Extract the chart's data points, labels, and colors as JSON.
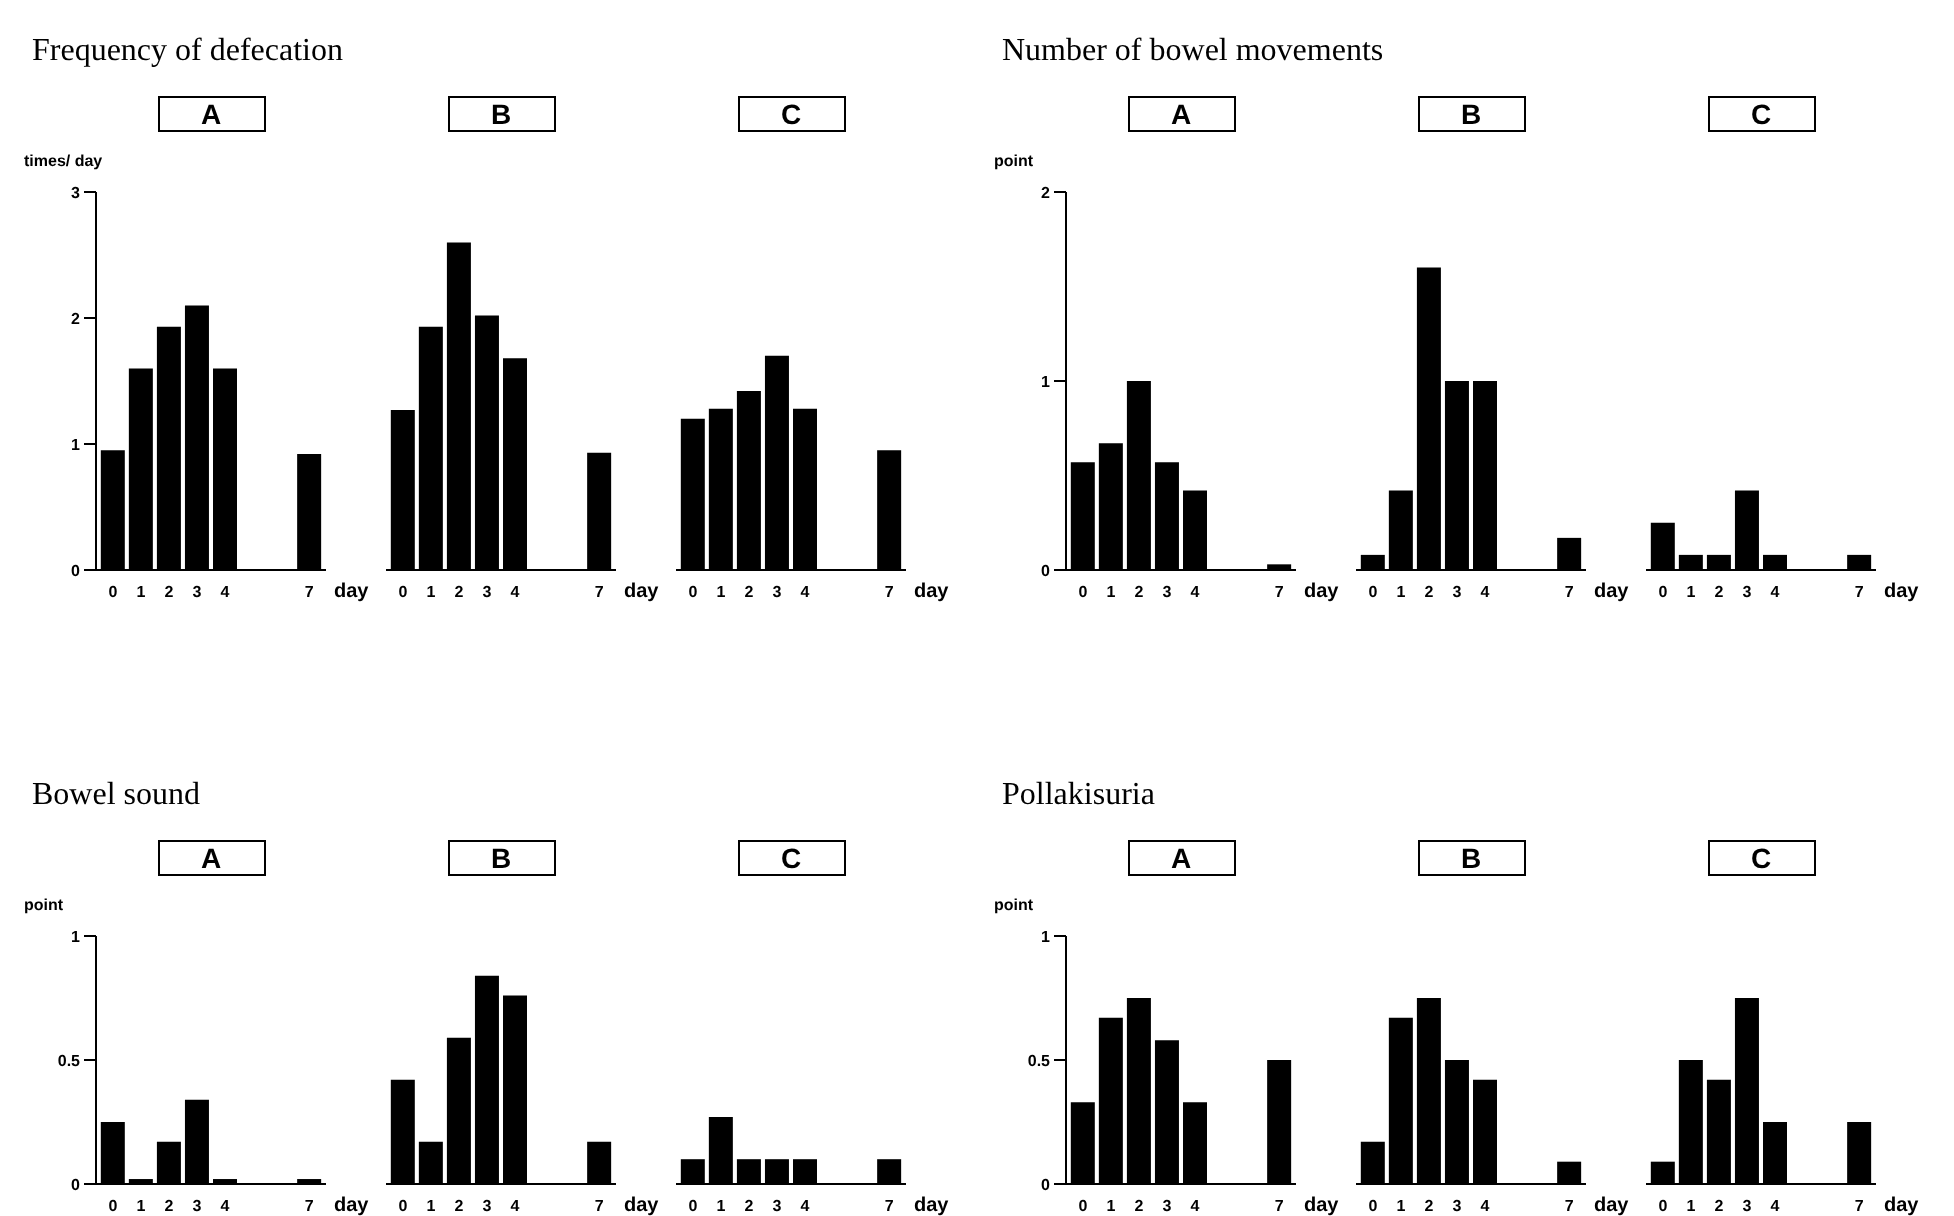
{
  "chart_data": [
    {
      "type": "bar",
      "title": "Frequency of defecation",
      "subtitle": "A",
      "ylabel": "times/ day",
      "xlabel": "day",
      "x": [
        0,
        1,
        2,
        3,
        4,
        7
      ],
      "values": [
        0.95,
        1.6,
        1.93,
        2.1,
        1.6,
        0.92
      ],
      "color": "#000000",
      "xlim": [
        -0.6,
        7.6
      ],
      "xticks": [
        0,
        1,
        2,
        3,
        4,
        7
      ],
      "ylim": [
        0,
        3
      ],
      "yticks": [
        0,
        1,
        2,
        3
      ]
    },
    {
      "type": "bar",
      "subtitle": "B",
      "xlabel": "day",
      "x": [
        0,
        1,
        2,
        3,
        4,
        7
      ],
      "values": [
        1.27,
        1.93,
        2.6,
        2.02,
        1.68,
        0.93
      ],
      "color": "#000000",
      "xlim": [
        -0.6,
        7.6
      ],
      "xticks": [
        0,
        1,
        2,
        3,
        4,
        7
      ],
      "ylim": [
        0,
        3
      ],
      "tick_labels": "x"
    },
    {
      "type": "bar",
      "subtitle": "C",
      "xlabel": "day",
      "x": [
        0,
        1,
        2,
        3,
        4,
        7
      ],
      "values": [
        1.2,
        1.28,
        1.42,
        1.7,
        1.28,
        0.95
      ],
      "color": "#000000",
      "xlim": [
        -0.6,
        7.6
      ],
      "xticks": [
        0,
        1,
        2,
        3,
        4,
        7
      ],
      "ylim": [
        0,
        3
      ],
      "tick_labels": "x"
    },
    {
      "type": "bar",
      "title": "Number of bowel movements",
      "subtitle": "A",
      "ylabel": "point",
      "xlabel": "day",
      "x": [
        0,
        1,
        2,
        3,
        4,
        7
      ],
      "values": [
        0.57,
        0.67,
        1.0,
        0.57,
        0.42,
        0.03
      ],
      "color": "#000000",
      "xlim": [
        -0.6,
        7.6
      ],
      "xticks": [
        0,
        1,
        2,
        3,
        4,
        7
      ],
      "ylim": [
        0,
        2
      ],
      "yticks": [
        0,
        1,
        2
      ]
    },
    {
      "type": "bar",
      "subtitle": "B",
      "xlabel": "day",
      "x": [
        0,
        1,
        2,
        3,
        4,
        7
      ],
      "values": [
        0.08,
        0.42,
        1.6,
        1.0,
        1.0,
        0.17
      ],
      "color": "#000000",
      "xlim": [
        -0.6,
        7.6
      ],
      "xticks": [
        0,
        1,
        2,
        3,
        4,
        7
      ],
      "ylim": [
        0,
        2
      ],
      "tick_labels": "x"
    },
    {
      "type": "bar",
      "subtitle": "C",
      "xlabel": "day",
      "x": [
        0,
        1,
        2,
        3,
        4,
        7
      ],
      "values": [
        0.25,
        0.08,
        0.08,
        0.42,
        0.08,
        0.08
      ],
      "color": "#000000",
      "xlim": [
        -0.6,
        7.6
      ],
      "xticks": [
        0,
        1,
        2,
        3,
        4,
        7
      ],
      "ylim": [
        0,
        2
      ],
      "tick_labels": "x"
    },
    {
      "type": "bar",
      "title": "Bowel sound",
      "subtitle": "A",
      "ylabel": "point",
      "xlabel": "day",
      "x": [
        0,
        1,
        2,
        3,
        4,
        7
      ],
      "values": [
        0.25,
        0.02,
        0.17,
        0.34,
        0.02,
        0.02
      ],
      "color": "#000000",
      "xlim": [
        -0.6,
        7.6
      ],
      "xticks": [
        0,
        1,
        2,
        3,
        4,
        7
      ],
      "ylim": [
        0,
        1
      ],
      "yticks": [
        0,
        0.5,
        1
      ]
    },
    {
      "type": "bar",
      "subtitle": "B",
      "xlabel": "day",
      "x": [
        0,
        1,
        2,
        3,
        4,
        7
      ],
      "values": [
        0.42,
        0.17,
        0.59,
        0.84,
        0.76,
        0.17
      ],
      "color": "#000000",
      "xlim": [
        -0.6,
        7.6
      ],
      "xticks": [
        0,
        1,
        2,
        3,
        4,
        7
      ],
      "ylim": [
        0,
        1
      ],
      "tick_labels": "x"
    },
    {
      "type": "bar",
      "subtitle": "C",
      "xlabel": "day",
      "x": [
        0,
        1,
        2,
        3,
        4,
        7
      ],
      "values": [
        0.1,
        0.27,
        0.1,
        0.1,
        0.1,
        0.1
      ],
      "color": "#000000",
      "xlim": [
        -0.6,
        7.6
      ],
      "xticks": [
        0,
        1,
        2,
        3,
        4,
        7
      ],
      "ylim": [
        0,
        1
      ],
      "tick_labels": "x"
    },
    {
      "type": "bar",
      "title": "Pollakisuria",
      "subtitle": "A",
      "ylabel": "point",
      "xlabel": "day",
      "x": [
        0,
        1,
        2,
        3,
        4,
        7
      ],
      "values": [
        0.33,
        0.67,
        0.75,
        0.58,
        0.33,
        0.5
      ],
      "color": "#000000",
      "xlim": [
        -0.6,
        7.6
      ],
      "xticks": [
        0,
        1,
        2,
        3,
        4,
        7
      ],
      "ylim": [
        0,
        1
      ],
      "yticks": [
        0,
        0.5,
        1
      ]
    },
    {
      "type": "bar",
      "subtitle": "B",
      "xlabel": "day",
      "x": [
        0,
        1,
        2,
        3,
        4,
        7
      ],
      "values": [
        0.17,
        0.67,
        0.75,
        0.5,
        0.42,
        0.09
      ],
      "color": "#000000",
      "xlim": [
        -0.6,
        7.6
      ],
      "xticks": [
        0,
        1,
        2,
        3,
        4,
        7
      ],
      "ylim": [
        0,
        1
      ],
      "tick_labels": "x"
    },
    {
      "type": "bar",
      "subtitle": "C",
      "xlabel": "day",
      "x": [
        0,
        1,
        2,
        3,
        4,
        7
      ],
      "values": [
        0.09,
        0.5,
        0.42,
        0.75,
        0.25,
        0.25
      ],
      "color": "#000000",
      "xlim": [
        -0.6,
        7.6
      ],
      "xticks": [
        0,
        1,
        2,
        3,
        4,
        7
      ],
      "ylim": [
        0,
        1
      ],
      "tick_labels": "x"
    }
  ]
}
